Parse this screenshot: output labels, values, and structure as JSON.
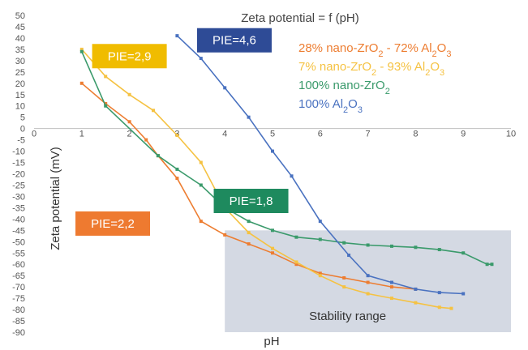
{
  "chart_data": {
    "type": "line",
    "title": "Zeta potential = f (pH)",
    "xlabel": "pH",
    "ylabel": "Zeta potential (mV)",
    "xlim": [
      0,
      10
    ],
    "ylim": [
      -90,
      50
    ],
    "x_ticks": [
      "0",
      "1",
      "2",
      "3",
      "4",
      "5",
      "6",
      "7",
      "8",
      "9",
      "10"
    ],
    "y_ticks": [
      "50",
      "45",
      "40",
      "35",
      "30",
      "25",
      "20",
      "15",
      "10",
      "5",
      "0",
      "-5",
      "-10",
      "-15",
      "-20",
      "-25",
      "-30",
      "-35",
      "-40",
      "-45",
      "-50",
      "-55",
      "-60",
      "-65",
      "-70",
      "-75",
      "-80",
      "-85",
      "-90"
    ],
    "grid": false,
    "legend_position": "top-right",
    "series": [
      {
        "name": "28% nano-ZrO2 - 72% Al2O3",
        "name_parts": [
          {
            "t": "28% nano-ZrO",
            "s": false
          },
          {
            "t": "2",
            "s": true
          },
          {
            "t": " - 72% Al",
            "s": false
          },
          {
            "t": "2",
            "s": true
          },
          {
            "t": "O",
            "s": false
          },
          {
            "t": "3",
            "s": true
          }
        ],
        "color": "#ED7D31",
        "points": [
          [
            1,
            20
          ],
          [
            1.5,
            11
          ],
          [
            2,
            3
          ],
          [
            2.35,
            -5
          ],
          [
            2.6,
            -12
          ],
          [
            3,
            -22
          ],
          [
            3.5,
            -41
          ],
          [
            4,
            -47
          ],
          [
            4.5,
            -51
          ],
          [
            5,
            -55
          ],
          [
            5.5,
            -60
          ],
          [
            6,
            -64
          ],
          [
            6.5,
            -66
          ],
          [
            7,
            -68
          ],
          [
            7.5,
            -70
          ],
          [
            8,
            -71
          ]
        ]
      },
      {
        "name": "7% nano-ZrO2 - 93% Al2O3",
        "name_parts": [
          {
            "t": "7% nano-ZrO",
            "s": false
          },
          {
            "t": "2",
            "s": true
          },
          {
            "t": " - 93% Al",
            "s": false
          },
          {
            "t": "2",
            "s": true
          },
          {
            "t": "O",
            "s": false
          },
          {
            "t": "3",
            "s": true
          }
        ],
        "color": "#F5C242",
        "points": [
          [
            1,
            35
          ],
          [
            1.5,
            23
          ],
          [
            2,
            15
          ],
          [
            2.5,
            8
          ],
          [
            3,
            -3
          ],
          [
            3.5,
            -15
          ],
          [
            4,
            -35
          ],
          [
            4.5,
            -46
          ],
          [
            5,
            -53
          ],
          [
            5.5,
            -59
          ],
          [
            6,
            -65
          ],
          [
            6.5,
            -70
          ],
          [
            7,
            -73
          ],
          [
            7.5,
            -75
          ],
          [
            8,
            -77
          ],
          [
            8.5,
            -79
          ],
          [
            8.75,
            -79.5
          ]
        ]
      },
      {
        "name": "100% nano-ZrO2",
        "name_parts": [
          {
            "t": "100% nano-ZrO",
            "s": false
          },
          {
            "t": "2",
            "s": true
          }
        ],
        "color": "#3A9A6B",
        "points": [
          [
            1,
            34
          ],
          [
            1.5,
            10
          ],
          [
            2.6,
            -12
          ],
          [
            3,
            -18
          ],
          [
            3.5,
            -25
          ],
          [
            4,
            -35
          ],
          [
            4.5,
            -41
          ],
          [
            5,
            -45
          ],
          [
            5.5,
            -48
          ],
          [
            6,
            -49
          ],
          [
            6.5,
            -50.5
          ],
          [
            7,
            -51.5
          ],
          [
            7.5,
            -52
          ],
          [
            8,
            -52.5
          ],
          [
            8.5,
            -53.5
          ],
          [
            9,
            -55
          ],
          [
            9.5,
            -60
          ],
          [
            9.6,
            -60
          ]
        ]
      },
      {
        "name": "100% Al2O3",
        "name_parts": [
          {
            "t": "100% Al",
            "s": false
          },
          {
            "t": "2",
            "s": true
          },
          {
            "t": "O",
            "s": false
          },
          {
            "t": "3",
            "s": true
          }
        ],
        "color": "#4A72C0",
        "points": [
          [
            3,
            41
          ],
          [
            3.5,
            31
          ],
          [
            4,
            18
          ],
          [
            4.5,
            5
          ],
          [
            5,
            -10
          ],
          [
            5.4,
            -21
          ],
          [
            6,
            -41
          ],
          [
            6.6,
            -56
          ],
          [
            7,
            -65
          ],
          [
            7.5,
            -68
          ],
          [
            8,
            -71
          ],
          [
            8.5,
            -72.5
          ],
          [
            9,
            -73
          ]
        ]
      }
    ],
    "annotations": [
      {
        "text": "PIE=2,9",
        "color": "#F0BC00",
        "cx": 2.0,
        "cy": 32
      },
      {
        "text": "PIE=4,6",
        "color": "#2E4B96",
        "cx": 4.2,
        "cy": 39
      },
      {
        "text": "PIE=2,2",
        "color": "#EE7A30",
        "cx": 1.65,
        "cy": -42
      },
      {
        "text": "PIE=1,8",
        "color": "#1E8A5E",
        "cx": 4.55,
        "cy": -32
      }
    ],
    "stability_range": {
      "label": "Stability range",
      "x": [
        4,
        10
      ],
      "y": [
        -90,
        -45
      ],
      "color": "#D4D9E3"
    }
  }
}
